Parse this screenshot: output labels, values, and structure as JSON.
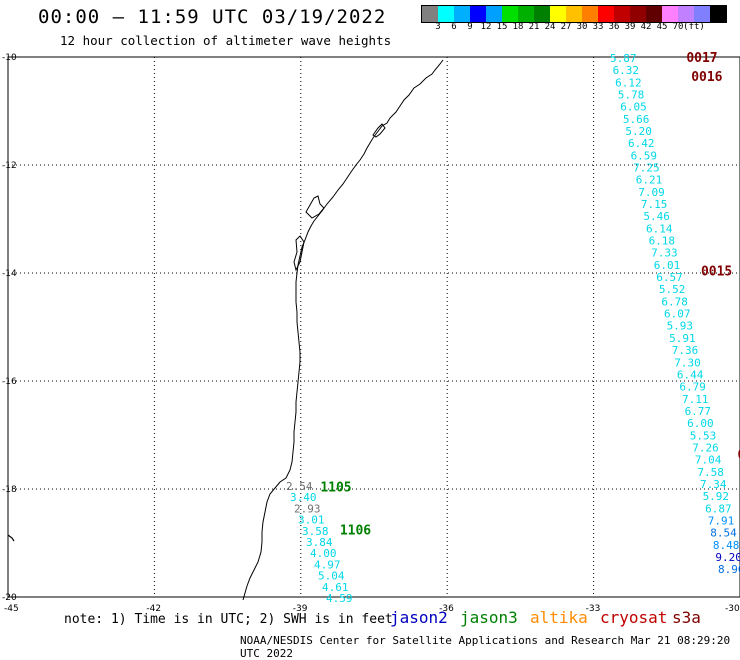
{
  "title": "00:00 – 11:59 UTC 03/19/2022",
  "subtitle": "12 hour collection of altimeter wave heights",
  "scale": {
    "colors": [
      "#808080",
      "#00ffff",
      "#00b0ff",
      "#0000ff",
      "#00a0ff",
      "#00e000",
      "#00b000",
      "#008000",
      "#ffff00",
      "#ffc000",
      "#ff8000",
      "#ff0000",
      "#c00000",
      "#900000",
      "#600000",
      "#ff80ff",
      "#c080ff",
      "#8080ff",
      "#000000"
    ],
    "labels": [
      "3",
      "6",
      "9",
      "12",
      "15",
      "18",
      "21",
      "24",
      "27",
      "30",
      "33",
      "36",
      "39",
      "42",
      "45",
      "70",
      "(ft)"
    ]
  },
  "axes": {
    "lat_labels": [
      "-10",
      "-12",
      "-14",
      "-16",
      "-18",
      "-20"
    ],
    "lon_labels": [
      "-45",
      "-42",
      "-39",
      "-36",
      "-33",
      "-30"
    ]
  },
  "tracks": [
    {
      "name": "0017",
      "color": "#800000",
      "label_y": -10.0,
      "label_x": -31.1
    },
    {
      "name": "0016",
      "color": "#800000",
      "label_y": -10.35,
      "label_x": -31.0
    },
    {
      "name": "0015",
      "color": "#800000",
      "label_y": -13.95,
      "label_x": -30.8
    },
    {
      "name": "00",
      "color": "#800000",
      "label_y": -17.35,
      "label_x": -30.05
    },
    {
      "name": "1105",
      "color": "#008000",
      "label_y": -17.95,
      "label_x": -38.6
    },
    {
      "name": "1106",
      "color": "#008000",
      "label_y": -18.75,
      "label_x": -38.2
    }
  ],
  "east_values": [
    "5.87",
    "6.32",
    "6.12",
    "5.78",
    "6.05",
    "5.66",
    "5.20",
    "6.42",
    "6.59",
    "7.25",
    "6.21",
    "7.09",
    "7.15",
    "5.46",
    "6.14",
    "6.18",
    "7.33",
    "6.01",
    "6.57",
    "5.52",
    "6.78",
    "6.07",
    "5.93",
    "5.91",
    "7.36",
    "7.30",
    "6.44",
    "6.79",
    "7.11",
    "6.77",
    "6.00",
    "5.53",
    "7.26",
    "7.04",
    "7.58",
    "7.34",
    "5.92",
    "6.87",
    "7.91",
    "8.54",
    "8.48",
    "9.20",
    "8.90"
  ],
  "west_values": [
    "2.54",
    "3.40",
    "2.93",
    "3.01",
    "3.58",
    "3.84",
    "4.00",
    "4.97",
    "5.04",
    "4.61",
    "4.59"
  ],
  "note": "note: 1) Time is in UTC; 2) SWH is in feet",
  "legend": [
    {
      "label": "jason2",
      "color": "#0000c0"
    },
    {
      "label": "jason3",
      "color": "#008000"
    },
    {
      "label": "altika",
      "color": "#ff8c00"
    },
    {
      "label": "cryosat",
      "color": "#c00000"
    },
    {
      "label": "s3a",
      "color": "#800000"
    }
  ],
  "credit": "NOAA/NESDIS Center for Satellite Applications and Research   Mar 21 08:29:20 UTC 2022"
}
